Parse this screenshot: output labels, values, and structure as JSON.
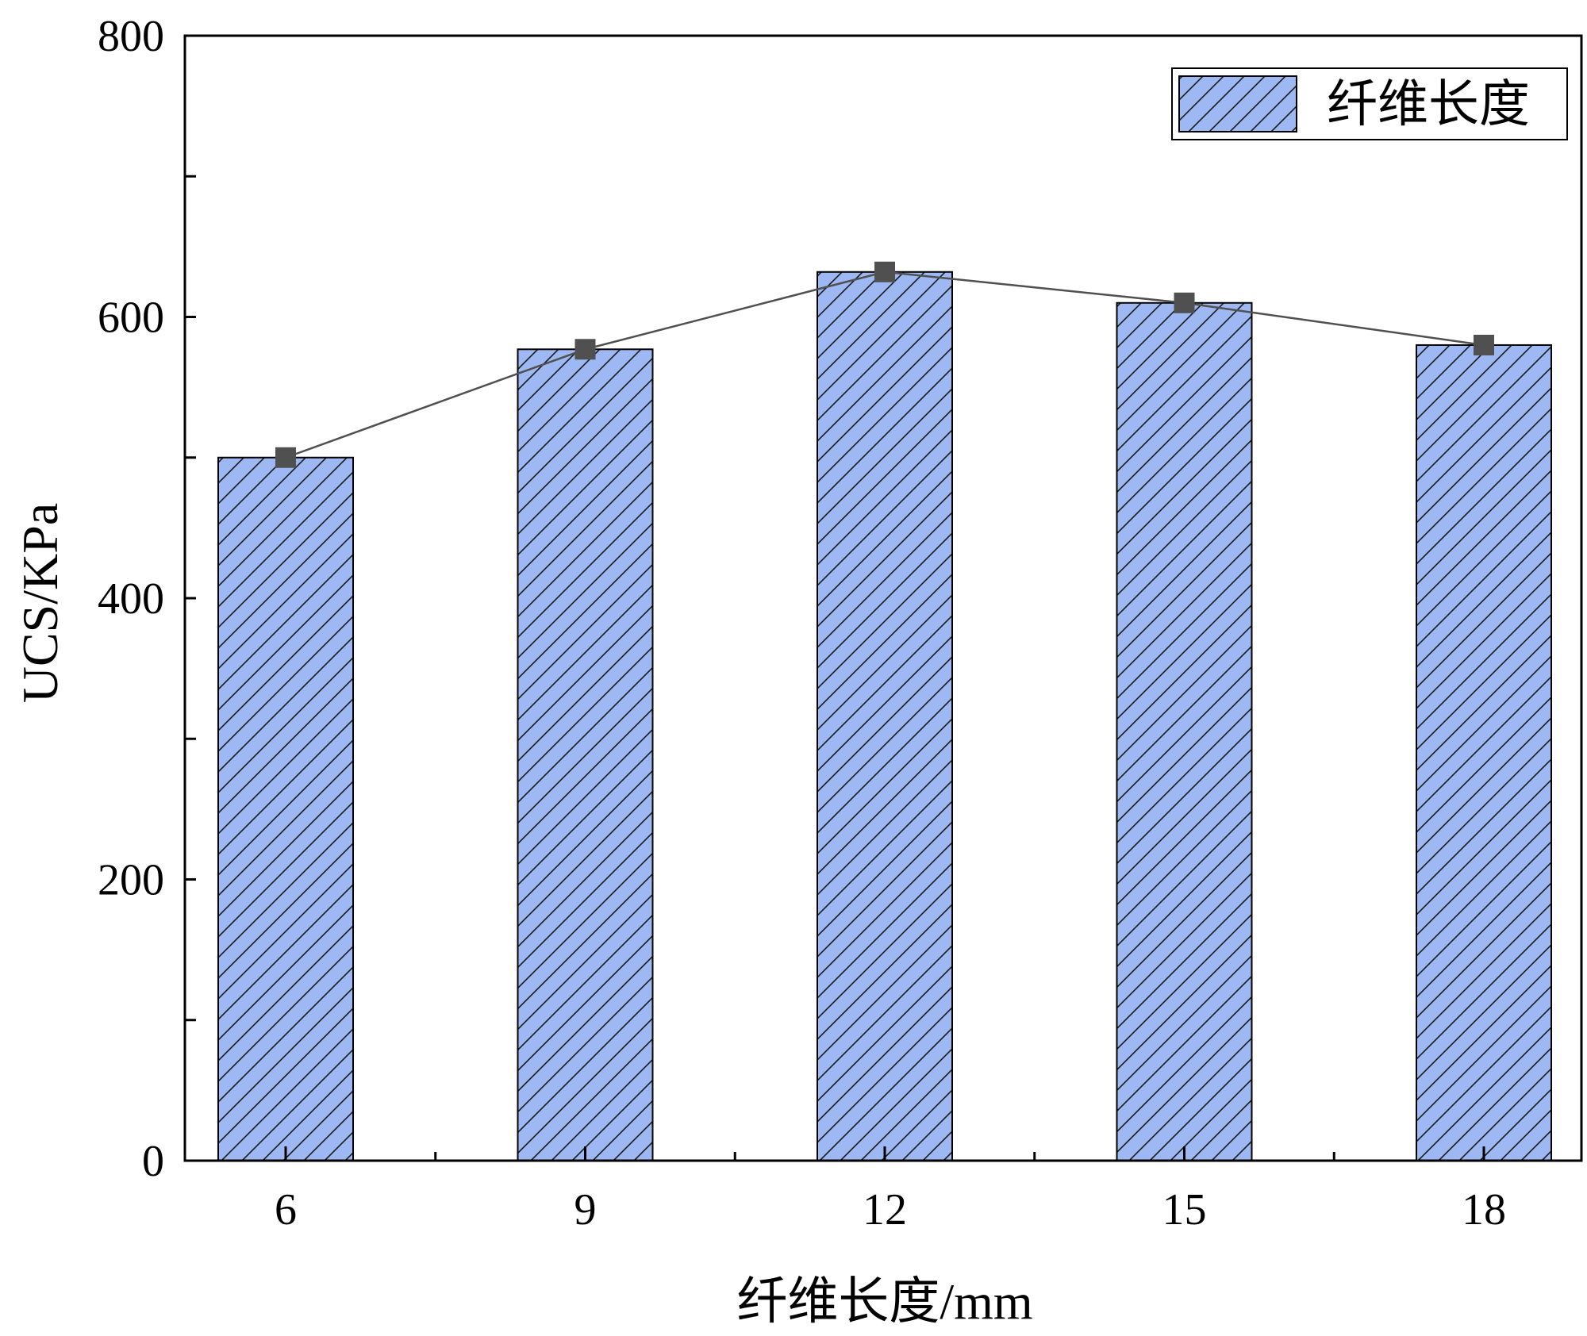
{
  "chart_data": {
    "type": "bar",
    "categories": [
      "6",
      "9",
      "12",
      "15",
      "18"
    ],
    "series": [
      {
        "name": "纤维长度",
        "values": [
          500,
          577,
          632,
          610,
          580
        ]
      }
    ],
    "overlay_line": {
      "values": [
        500,
        577,
        632,
        610,
        580
      ],
      "marker": "square",
      "color": "#505050"
    },
    "title": "",
    "xlabel": "纤维长度/mm",
    "ylabel": "UCS/KPa",
    "ylim": [
      0,
      800
    ],
    "yticks": [
      "0",
      "200",
      "400",
      "600",
      "800"
    ],
    "grid": false,
    "legend": {
      "position": "top-right",
      "entries": [
        "纤维长度"
      ]
    },
    "bar_fill": "#9db8f2",
    "bar_pattern": "diagonal-hatch",
    "bar_edge": "#000000"
  }
}
